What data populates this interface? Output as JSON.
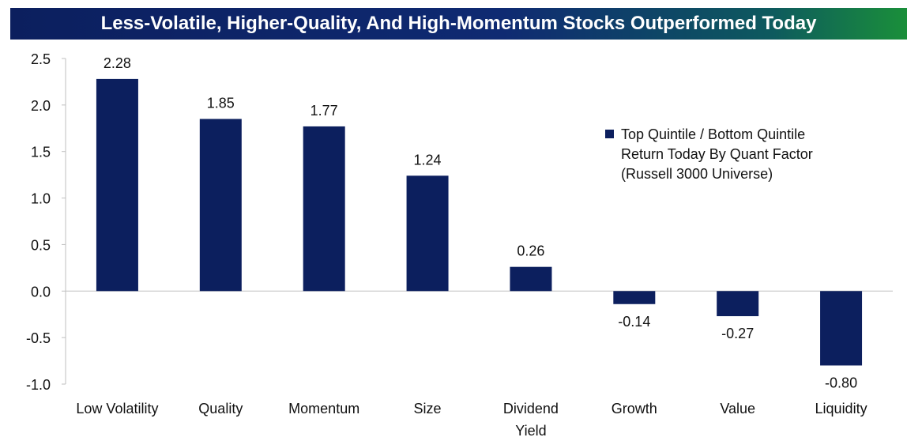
{
  "title": "Less-Volatile, Higher-Quality, And High-Momentum Stocks Outperformed Today",
  "colors": {
    "bar": "#0c1f5e",
    "text": "#111111",
    "axis": "#bfbfbf"
  },
  "chart_data": {
    "type": "bar",
    "title": "Less-Volatile, Higher-Quality, And High-Momentum Stocks Outperformed Today",
    "categories": [
      "Low Volatility",
      "Quality",
      "Momentum",
      "Size",
      "Dividend Yield",
      "Growth",
      "Value",
      "Liquidity"
    ],
    "category_lines": [
      [
        "Low Volatility"
      ],
      [
        "Quality"
      ],
      [
        "Momentum"
      ],
      [
        "Size"
      ],
      [
        "Dividend",
        "Yield"
      ],
      [
        "Growth"
      ],
      [
        "Value"
      ],
      [
        "Liquidity"
      ]
    ],
    "values": [
      2.28,
      1.85,
      1.77,
      1.24,
      0.26,
      -0.14,
      -0.27,
      -0.8
    ],
    "value_labels": [
      "2.28",
      "1.85",
      "1.77",
      "1.24",
      "0.26",
      "-0.14",
      "-0.27",
      "-0.80"
    ],
    "series_name": "Top Quintile / Bottom Quintile Return Today By Quant Factor (Russell 3000 Universe)",
    "yticks": [
      2.5,
      2.0,
      1.5,
      1.0,
      0.5,
      0.0,
      -0.5,
      -1.0
    ],
    "ytick_labels": [
      "2.5",
      "2.0",
      "1.5",
      "1.0",
      "0.5",
      "0.0",
      "-0.5",
      "-1.0"
    ],
    "ylim": [
      -1.0,
      2.5
    ],
    "xlabel": "",
    "ylabel": "",
    "legend_position": "right",
    "grid": false
  }
}
